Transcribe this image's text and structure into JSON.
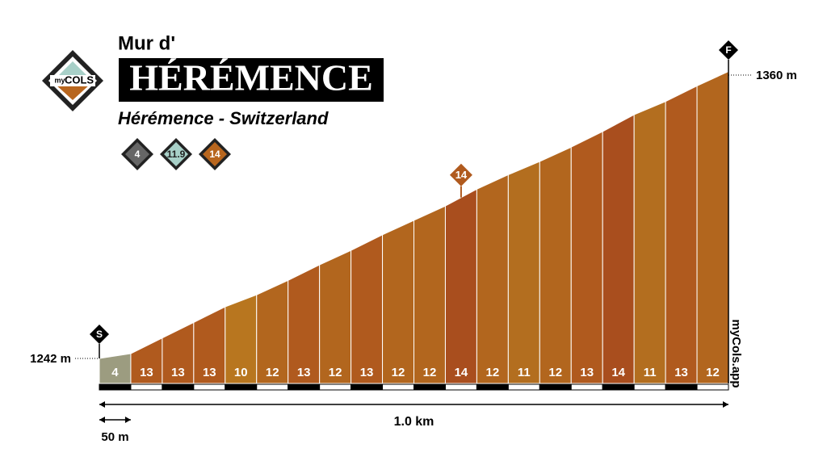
{
  "header": {
    "pretitle": "Mur d'",
    "title": "HÉRÉMENCE",
    "subtitle": "Hérémence - Switzerland",
    "logo_my": "my",
    "logo_cols": "COLS",
    "badges": [
      4,
      11.9,
      14
    ]
  },
  "chart_data": {
    "type": "profile",
    "segments": [
      4,
      13,
      13,
      13,
      10,
      12,
      13,
      12,
      13,
      12,
      12,
      14,
      12,
      11,
      12,
      13,
      14,
      11,
      13,
      12
    ],
    "colors": [
      "#9c9c80",
      "#b05a1e",
      "#b05a1e",
      "#b05a1e",
      "#b8761f",
      "#b2661e",
      "#b05a1e",
      "#b2661e",
      "#b05a1e",
      "#b2661e",
      "#b2661e",
      "#a94e1e",
      "#b2661e",
      "#b36e1f",
      "#b2661e",
      "#b05a1e",
      "#a94e1e",
      "#b36e1f",
      "#b05a1e",
      "#b2661e"
    ],
    "start_elevation": {
      "value": 1242,
      "label": "1242 m"
    },
    "end_elevation": {
      "value": 1360,
      "label": "1360 m"
    },
    "distance": {
      "value": 1.0,
      "label": "1.0 km"
    },
    "segment_length": {
      "value": 50,
      "label": "50 m"
    },
    "start_marker": "S",
    "finish_marker": "F",
    "max_marker": 14
  },
  "watermark": "myCols.app"
}
